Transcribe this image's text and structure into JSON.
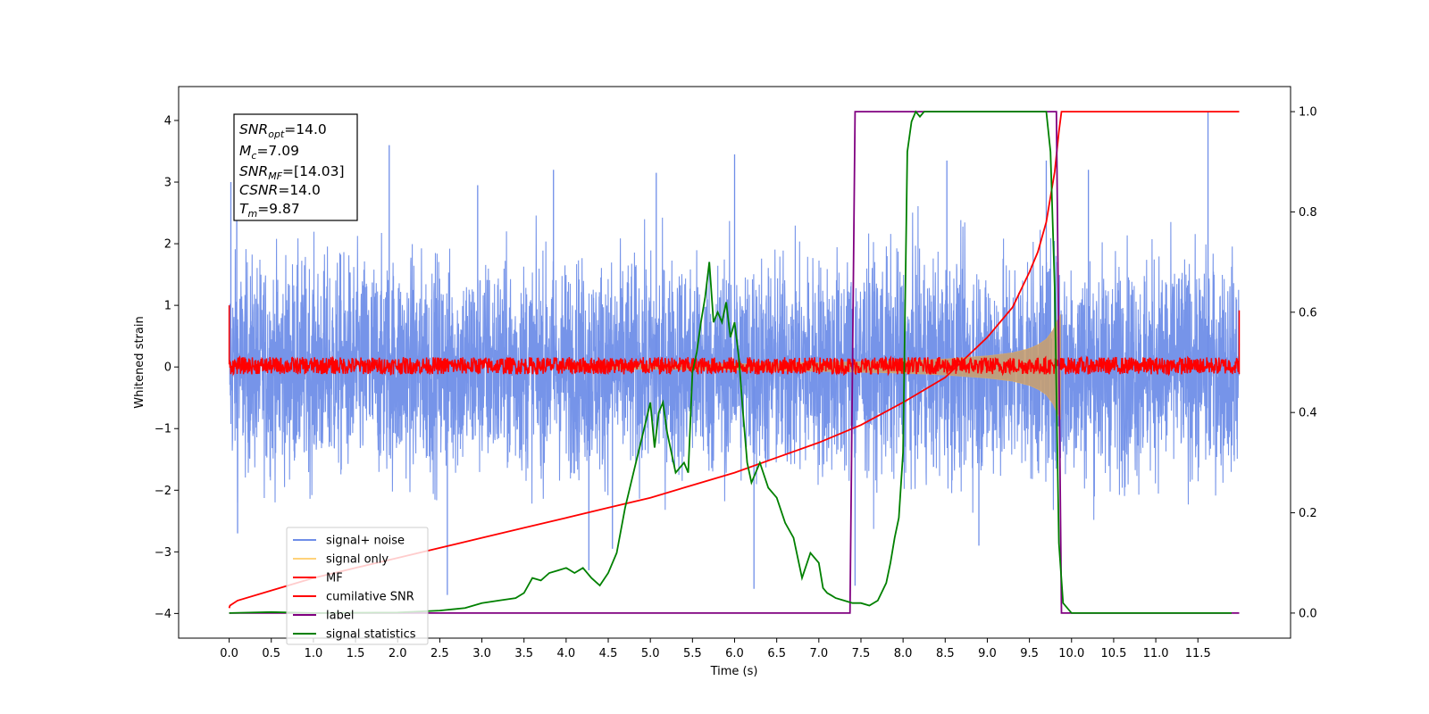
{
  "chart_data": {
    "type": "line",
    "xlabel": "Time (s)",
    "ylabel": "Whitened strain",
    "xlim": [
      -0.6,
      12.6
    ],
    "ylim": [
      -4.4,
      4.55
    ],
    "y2lim": [
      -0.05,
      1.05
    ],
    "x_ticks": [
      0.0,
      0.5,
      1.0,
      1.5,
      2.0,
      2.5,
      3.0,
      3.5,
      4.0,
      4.5,
      5.0,
      5.5,
      6.0,
      6.5,
      7.0,
      7.5,
      8.0,
      8.5,
      9.0,
      9.5,
      10.0,
      10.5,
      11.0,
      11.5
    ],
    "x_tick_labels": [
      "0.0",
      "0.5",
      "1.0",
      "1.5",
      "2.0",
      "2.5",
      "3.0",
      "3.5",
      "4.0",
      "4.5",
      "5.0",
      "5.5",
      "6.0",
      "6.5",
      "7.0",
      "7.5",
      "8.0",
      "8.5",
      "9.0",
      "9.5",
      "10.0",
      "10.5",
      "11.0",
      "11.5"
    ],
    "y_ticks": [
      -4,
      -3,
      -2,
      -1,
      0,
      1,
      2,
      3,
      4
    ],
    "y_tick_labels": [
      "−4",
      "−3",
      "−2",
      "−1",
      "0",
      "1",
      "2",
      "3",
      "4"
    ],
    "y2_ticks": [
      0.0,
      0.2,
      0.4,
      0.6,
      0.8,
      1.0
    ],
    "y2_tick_labels": [
      "0.0",
      "0.2",
      "0.4",
      "0.6",
      "0.8",
      "1.0"
    ],
    "grid": false,
    "legend_position": "lower-left",
    "annotation": {
      "snr_opt": {
        "symbol": "SNR",
        "sub": "opt",
        "value": "=14.0"
      },
      "mc": {
        "symbol": "M",
        "sub": "c",
        "value": "=7.09"
      },
      "snr_mf": {
        "symbol": "SNR",
        "sub": "MF",
        "value": "=[14.03]"
      },
      "csnr": {
        "symbol": "CSNR",
        "sub": "",
        "value": "=14.0"
      },
      "tm": {
        "symbol": "T",
        "sub": "m",
        "value": "=9.87"
      }
    },
    "series": [
      {
        "name": "signal+ noise",
        "color": "#6f8ee8",
        "axis": "left",
        "kind": "noise",
        "x_range": [
          0.0,
          11.99
        ],
        "envelope_points": {
          "x": [
            0,
            2,
            4,
            6,
            8,
            10,
            11.99
          ],
          "upper": [
            2.2,
            2.3,
            2.2,
            2.3,
            2.3,
            2.4,
            2.2
          ],
          "lower": [
            -2.2,
            -2.3,
            -2.2,
            -2.3,
            -2.3,
            -2.4,
            -2.2
          ]
        },
        "peaks": [
          [
            0.02,
            3.0
          ],
          [
            0.09,
            2.85
          ],
          [
            1.9,
            3.6
          ],
          [
            2.95,
            2.95
          ],
          [
            3.85,
            3.2
          ],
          [
            5.07,
            3.15
          ],
          [
            6.0,
            3.45
          ],
          [
            8.52,
            3.35
          ],
          [
            9.7,
            3.35
          ],
          [
            10.2,
            3.2
          ],
          [
            11.62,
            4.15
          ],
          [
            0.1,
            -2.7
          ],
          [
            2.59,
            -3.7
          ],
          [
            4.27,
            -3.3
          ],
          [
            4.55,
            -2.95
          ],
          [
            6.23,
            -3.6
          ],
          [
            7.43,
            -3.55
          ],
          [
            8.9,
            -2.9
          ]
        ]
      },
      {
        "name": "signal only",
        "color": "#ffd27a",
        "axis": "left",
        "kind": "chirp",
        "t_merge": 9.87,
        "amplitude_points": {
          "x": [
            0,
            5,
            6,
            7,
            8,
            8.5,
            9,
            9.3,
            9.5,
            9.6,
            9.7,
            9.78,
            9.83,
            9.87
          ],
          "y": [
            0.03,
            0.04,
            0.05,
            0.07,
            0.1,
            0.13,
            0.18,
            0.23,
            0.3,
            0.36,
            0.45,
            0.6,
            0.75,
            0.85
          ]
        }
      },
      {
        "name": "MF",
        "color": "#ff0000",
        "axis": "left",
        "kind": "mf",
        "x_range": [
          0.0,
          11.99
        ],
        "band": [
          -0.08,
          0.12
        ],
        "edge_values": [
          1.0,
          0.92
        ]
      },
      {
        "name": "cumilative SNR",
        "color": "#ff0000",
        "axis": "right",
        "kind": "line",
        "x": [
          0.0,
          0.01,
          0.1,
          0.5,
          1.0,
          1.5,
          2.0,
          2.5,
          3.0,
          3.5,
          4.0,
          4.5,
          5.0,
          5.5,
          6.0,
          6.5,
          7.0,
          7.5,
          8.0,
          8.5,
          9.0,
          9.3,
          9.5,
          9.6,
          9.7,
          9.75,
          9.8,
          9.85,
          9.88,
          9.9,
          11.99
        ],
        "y": [
          0.01,
          0.015,
          0.025,
          0.045,
          0.07,
          0.09,
          0.11,
          0.13,
          0.15,
          0.17,
          0.19,
          0.21,
          0.23,
          0.255,
          0.28,
          0.31,
          0.34,
          0.375,
          0.42,
          0.47,
          0.55,
          0.61,
          0.68,
          0.72,
          0.78,
          0.83,
          0.88,
          0.96,
          1.0,
          1.0,
          1.0
        ]
      },
      {
        "name": "label",
        "color": "#800080",
        "axis": "right",
        "kind": "line",
        "x": [
          0.0,
          7.37,
          7.43,
          9.82,
          9.88,
          11.99
        ],
        "y": [
          0.0,
          0.0,
          1.0,
          1.0,
          0.0,
          0.0
        ]
      },
      {
        "name": "signal statistics",
        "color": "#008000",
        "axis": "right",
        "kind": "line",
        "x": [
          0.0,
          0.5,
          1.0,
          2.0,
          2.5,
          2.8,
          3.0,
          3.2,
          3.4,
          3.5,
          3.6,
          3.7,
          3.8,
          3.9,
          4.0,
          4.1,
          4.2,
          4.3,
          4.4,
          4.5,
          4.6,
          4.7,
          4.8,
          4.9,
          5.0,
          5.05,
          5.1,
          5.15,
          5.2,
          5.3,
          5.4,
          5.45,
          5.5,
          5.55,
          5.6,
          5.65,
          5.7,
          5.75,
          5.8,
          5.85,
          5.9,
          5.95,
          6.0,
          6.05,
          6.1,
          6.15,
          6.2,
          6.3,
          6.4,
          6.5,
          6.6,
          6.7,
          6.8,
          6.9,
          7.0,
          7.05,
          7.1,
          7.15,
          7.2,
          7.3,
          7.4,
          7.5,
          7.6,
          7.7,
          7.8,
          7.85,
          7.9,
          7.95,
          8.0,
          8.05,
          8.1,
          8.15,
          8.2,
          8.25,
          8.3,
          8.35,
          8.4,
          8.5,
          8.6,
          8.7,
          8.8,
          9.0,
          9.2,
          9.4,
          9.6,
          9.7,
          9.75,
          9.8,
          9.85,
          9.9,
          10.0,
          11.9
        ],
        "y": [
          0.0,
          0.002,
          0.0,
          0.001,
          0.005,
          0.01,
          0.02,
          0.025,
          0.03,
          0.04,
          0.07,
          0.065,
          0.08,
          0.085,
          0.09,
          0.08,
          0.09,
          0.07,
          0.055,
          0.08,
          0.12,
          0.21,
          0.28,
          0.35,
          0.42,
          0.33,
          0.4,
          0.42,
          0.36,
          0.28,
          0.3,
          0.28,
          0.48,
          0.52,
          0.58,
          0.63,
          0.7,
          0.58,
          0.6,
          0.58,
          0.62,
          0.55,
          0.58,
          0.51,
          0.4,
          0.3,
          0.26,
          0.3,
          0.25,
          0.23,
          0.18,
          0.15,
          0.07,
          0.12,
          0.1,
          0.05,
          0.04,
          0.035,
          0.03,
          0.025,
          0.02,
          0.02,
          0.015,
          0.025,
          0.06,
          0.1,
          0.15,
          0.19,
          0.32,
          0.92,
          0.98,
          1.0,
          0.99,
          1.0,
          1.0,
          1.0,
          1.0,
          1.0,
          1.0,
          1.0,
          1.0,
          1.0,
          1.0,
          1.0,
          1.0,
          1.0,
          0.92,
          0.65,
          0.14,
          0.02,
          0.0,
          0.0
        ]
      }
    ]
  }
}
